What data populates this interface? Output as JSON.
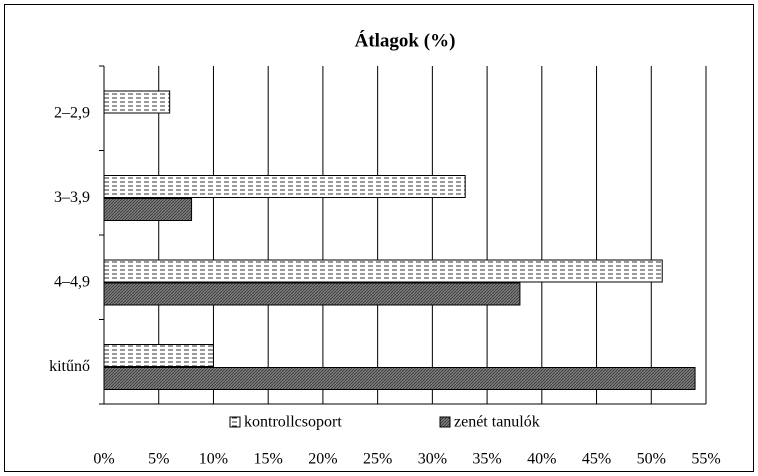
{
  "chart_data": {
    "type": "barh",
    "title": "Átlagok (%)",
    "categories": [
      "2–2,9",
      "3–3,9",
      "4–4,9",
      "kitűnő"
    ],
    "series": [
      {
        "name": "kontrollcsoport",
        "color": "#ffffff",
        "values": [
          6,
          33,
          51,
          10
        ]
      },
      {
        "name": "zenét tanulók",
        "color": "#7f7f7f",
        "values": [
          0,
          8,
          38,
          54
        ]
      }
    ],
    "xlim": [
      0,
      55
    ],
    "xticks": [
      {
        "value": 0,
        "label": "0%"
      },
      {
        "value": 5,
        "label": "5%"
      },
      {
        "value": 10,
        "label": "10%"
      },
      {
        "value": 15,
        "label": "15%"
      },
      {
        "value": 20,
        "label": "20%"
      },
      {
        "value": 25,
        "label": "25%"
      },
      {
        "value": 30,
        "label": "30%"
      },
      {
        "value": 35,
        "label": "35%"
      },
      {
        "value": 40,
        "label": "40%"
      },
      {
        "value": 45,
        "label": "45%"
      },
      {
        "value": 50,
        "label": "50%"
      },
      {
        "value": 55,
        "label": "55%"
      }
    ],
    "grid": true,
    "legend": "bottom"
  }
}
